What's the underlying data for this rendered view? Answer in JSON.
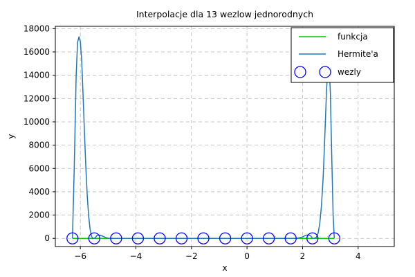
{
  "chart_data": {
    "type": "line",
    "title": "Interpolacje dla 13 wezlow jednorodnych",
    "xlabel": "x",
    "ylabel": "y",
    "xlim": [
      -6.9,
      5.3
    ],
    "ylim": [
      -700,
      18200
    ],
    "xticks": [
      -6,
      -4,
      -2,
      0,
      2,
      4
    ],
    "xtick_labels": [
      "−6",
      "−4",
      "−2",
      "0",
      "2",
      "4"
    ],
    "yticks": [
      0,
      2000,
      4000,
      6000,
      8000,
      10000,
      12000,
      14000,
      16000,
      18000
    ],
    "ytick_labels": [
      "0",
      "2000",
      "4000",
      "6000",
      "8000",
      "10000",
      "12000",
      "14000",
      "16000",
      "18000"
    ],
    "grid": true,
    "legend_position": "top-right",
    "series": [
      {
        "name": "funkcja",
        "color": "#00cc00",
        "kind": "line",
        "x": [
          -6.283,
          -4.712,
          -3.142,
          -1.571,
          0,
          1.571,
          3.142
        ],
        "y": [
          0,
          0,
          0,
          0,
          0,
          0,
          0
        ]
      },
      {
        "name": "Hermite'a",
        "color": "#1f77b4",
        "kind": "line",
        "x": [
          -6.283,
          -6.22,
          -6.15,
          -6.1,
          -6.05,
          -6.0,
          -5.95,
          -5.9,
          -5.85,
          -5.8,
          -5.75,
          -5.7,
          -5.65,
          -5.6,
          -5.55,
          -5.5,
          -5.45,
          -5.4,
          -5.3,
          -5.2,
          -5.1,
          -5.0,
          -4.9,
          -4.712,
          -4.5,
          -4.0,
          -3.5,
          -3.0,
          -2.5,
          -2.0,
          -1.5,
          -1.0,
          -0.5,
          0.0,
          0.5,
          1.0,
          1.5,
          1.8,
          2.0,
          2.1,
          2.2,
          2.3,
          2.356,
          2.42,
          2.5,
          2.56,
          2.62,
          2.68,
          2.74,
          2.78,
          2.82,
          2.86,
          2.9,
          2.95,
          3.0,
          3.05,
          3.1,
          3.142
        ],
        "y": [
          0,
          6000,
          14000,
          16800,
          17300,
          16900,
          15200,
          12200,
          9000,
          6000,
          3600,
          1900,
          800,
          200,
          0,
          0,
          100,
          250,
          280,
          200,
          80,
          10,
          0,
          0,
          0,
          0,
          0,
          0,
          0,
          0,
          0,
          0,
          0,
          0,
          0,
          0,
          0,
          0,
          120,
          250,
          300,
          200,
          0,
          0,
          100,
          450,
          1300,
          2800,
          5200,
          7500,
          10000,
          12500,
          14500,
          15200,
          12500,
          7000,
          2000,
          0
        ]
      },
      {
        "name": "wezly",
        "color": "#0000ff",
        "kind": "markers",
        "x": [
          -6.283,
          -5.498,
          -4.712,
          -3.927,
          -3.142,
          -2.356,
          -1.571,
          -0.785,
          0.0,
          0.785,
          1.571,
          2.356,
          3.142
        ],
        "y": [
          0,
          0,
          0,
          0,
          0,
          0,
          0,
          0,
          0,
          0,
          0,
          0,
          0
        ]
      }
    ]
  }
}
